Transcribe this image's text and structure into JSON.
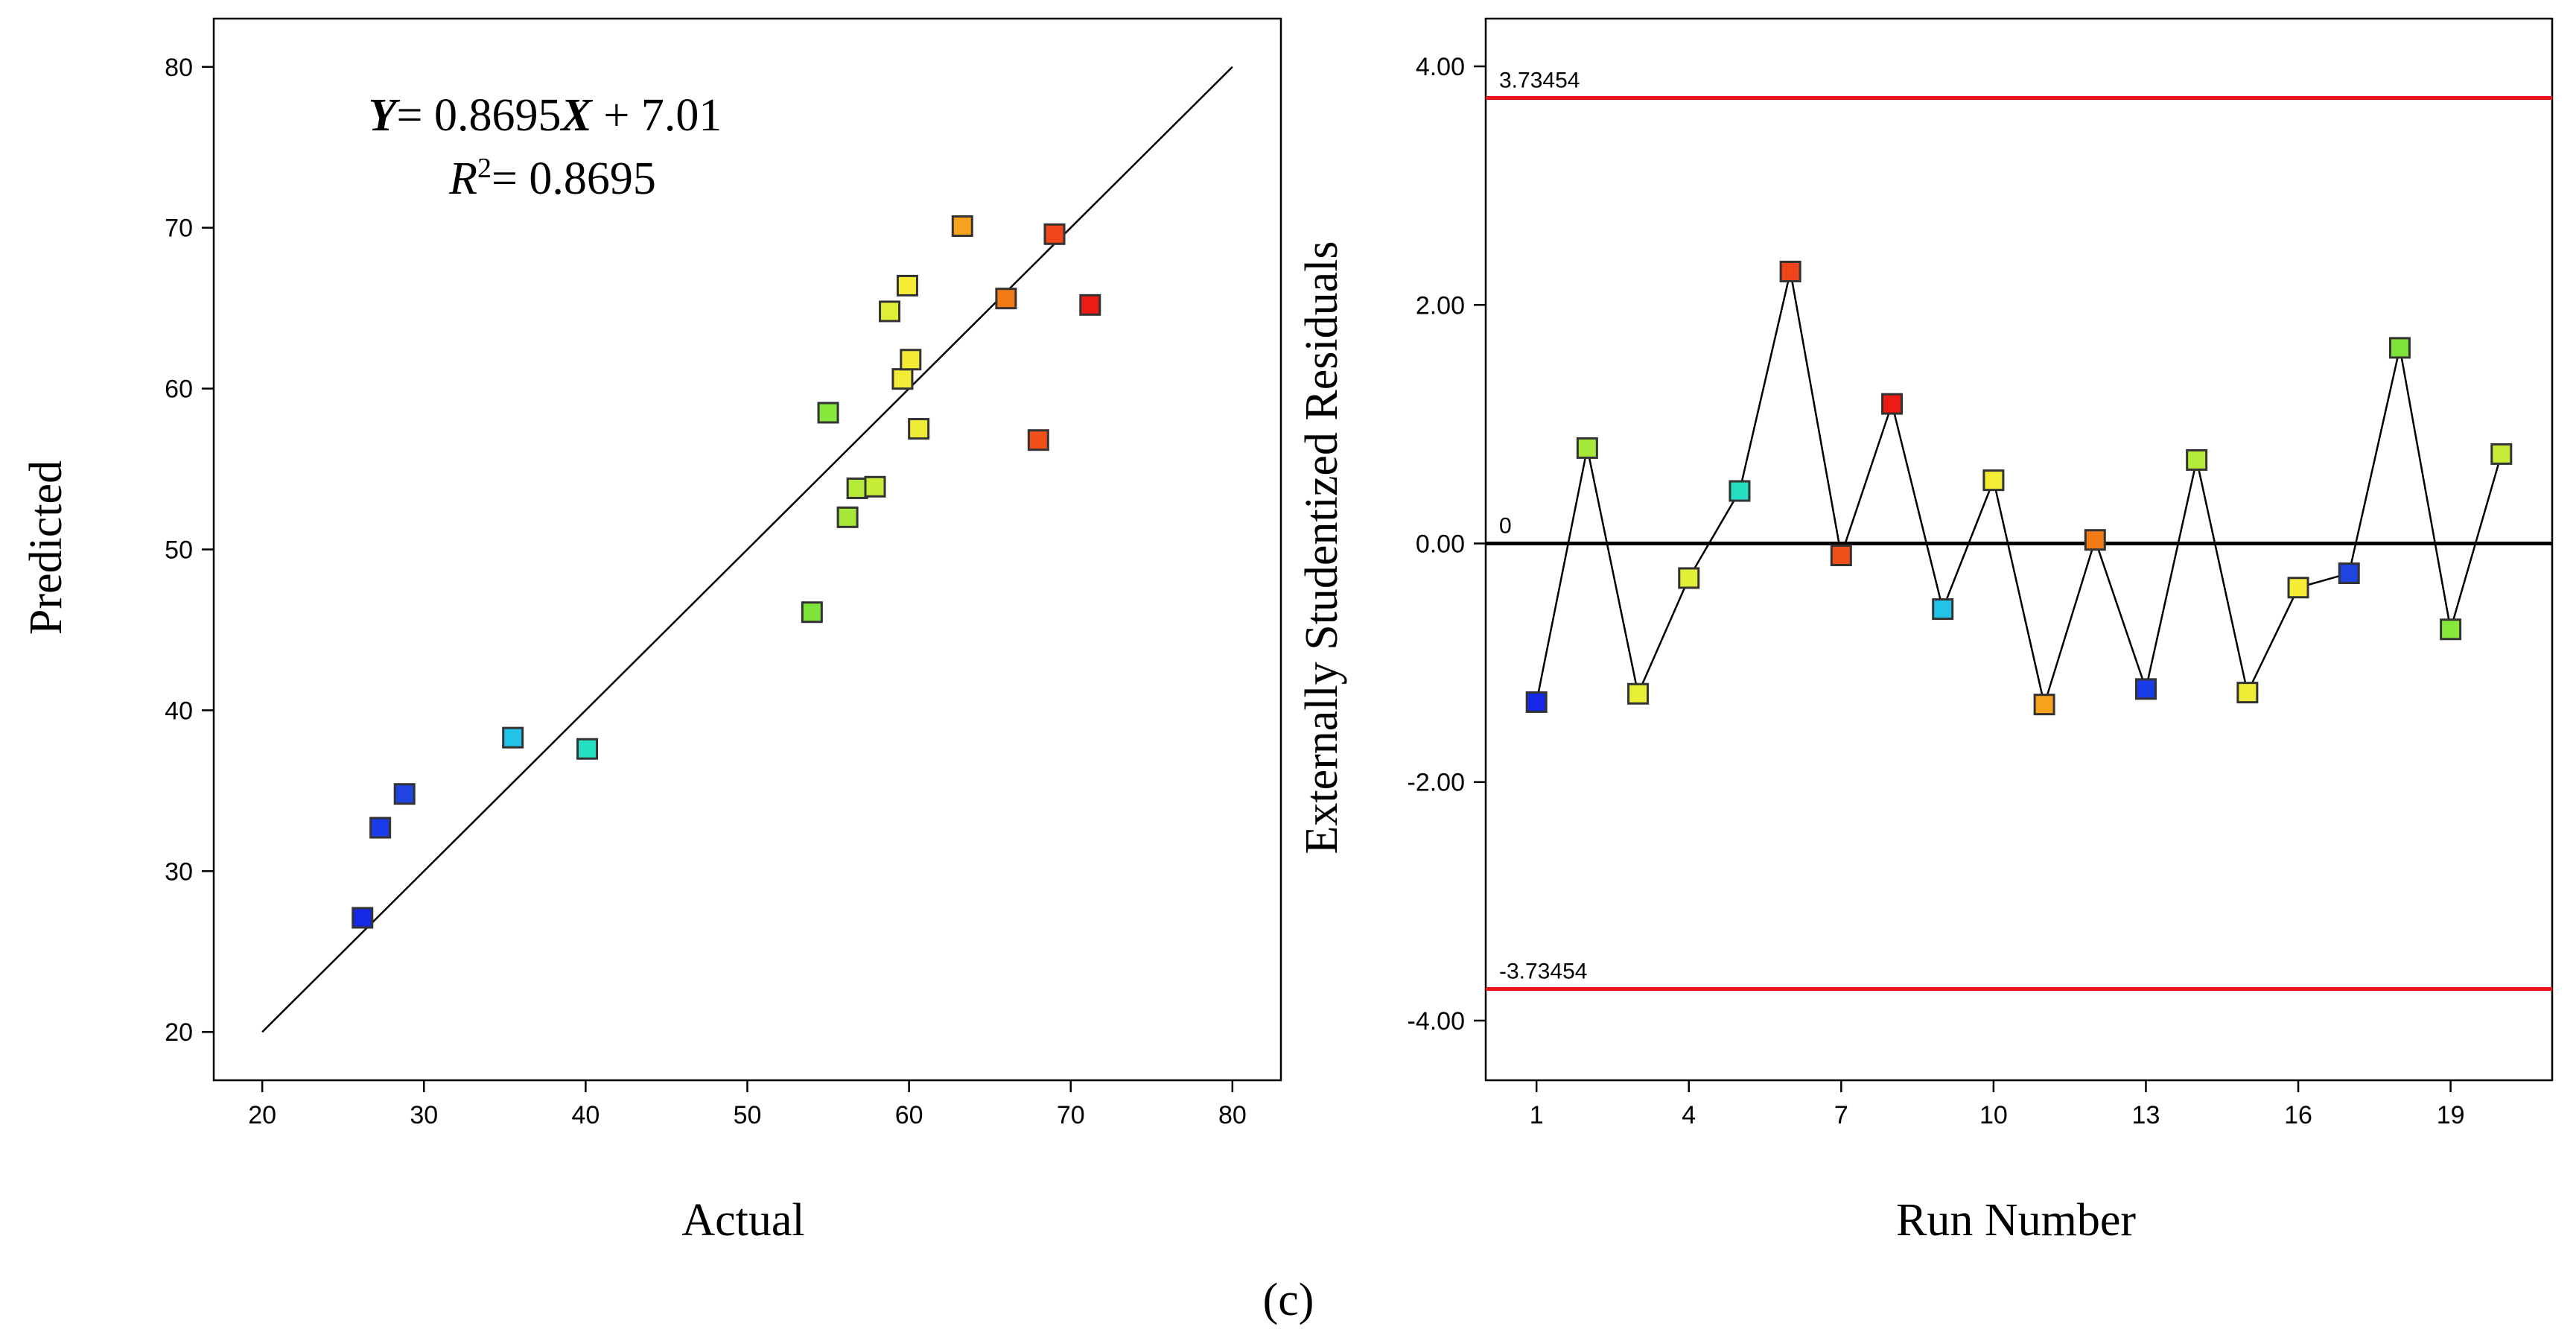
{
  "panel_label": "(c)",
  "chart_data": [
    {
      "type": "scatter",
      "xlabel": "Actual",
      "ylabel": "Predicted",
      "xlim": [
        17,
        83
      ],
      "ylim": [
        17,
        83
      ],
      "xticks": [
        20,
        30,
        40,
        50,
        60,
        70,
        80
      ],
      "yticks": [
        20,
        30,
        40,
        50,
        60,
        70,
        80
      ],
      "equation": {
        "y_var": "Y",
        "eq_text": "= 0.8695",
        "x_var": "X",
        "intercept_text": " + 7.01"
      },
      "r2": {
        "r_var": "R",
        "sup": "2",
        "eq_text": "= 0.8695"
      },
      "fit_line": {
        "x": [
          20,
          80
        ],
        "y": [
          20,
          80
        ],
        "color": "#000000"
      },
      "points": [
        {
          "x": 26.2,
          "y": 27.1,
          "color": "#1428e6"
        },
        {
          "x": 27.3,
          "y": 32.7,
          "color": "#1a3be8"
        },
        {
          "x": 28.8,
          "y": 34.8,
          "color": "#1f45e0"
        },
        {
          "x": 35.5,
          "y": 38.3,
          "color": "#22c3e8"
        },
        {
          "x": 40.1,
          "y": 37.6,
          "color": "#24e0c0"
        },
        {
          "x": 54.0,
          "y": 46.1,
          "color": "#7ee43a"
        },
        {
          "x": 55.0,
          "y": 58.5,
          "color": "#86e83a"
        },
        {
          "x": 56.2,
          "y": 52.0,
          "color": "#a6e83a"
        },
        {
          "x": 56.8,
          "y": 53.8,
          "color": "#b6ea38"
        },
        {
          "x": 57.9,
          "y": 53.9,
          "color": "#c6ec38"
        },
        {
          "x": 58.8,
          "y": 64.8,
          "color": "#e2ee36"
        },
        {
          "x": 59.6,
          "y": 60.6,
          "color": "#f2ec34"
        },
        {
          "x": 59.9,
          "y": 66.4,
          "color": "#f6ec34"
        },
        {
          "x": 60.1,
          "y": 61.8,
          "color": "#f4ea34"
        },
        {
          "x": 60.6,
          "y": 57.5,
          "color": "#eeec36"
        },
        {
          "x": 63.3,
          "y": 70.1,
          "color": "#f7a21c"
        },
        {
          "x": 66.0,
          "y": 65.6,
          "color": "#f27a14"
        },
        {
          "x": 68.0,
          "y": 56.8,
          "color": "#f2501a"
        },
        {
          "x": 69.0,
          "y": 69.6,
          "color": "#f0441a"
        },
        {
          "x": 71.2,
          "y": 65.2,
          "color": "#ee1a14"
        }
      ]
    },
    {
      "type": "line",
      "xlabel": "Run Number",
      "ylabel": "Externally Studentized Residuals",
      "xlim": [
        0,
        21
      ],
      "ylim": [
        -4.5,
        4.4
      ],
      "xticks": [
        1,
        4,
        7,
        10,
        13,
        16,
        19
      ],
      "yticks": [
        -4,
        -2,
        0,
        2,
        4
      ],
      "ytick_labels": [
        "-4.00",
        "-2.00",
        "0.00",
        "2.00",
        "4.00"
      ],
      "reference_lines": [
        {
          "y": 3.73454,
          "label": "3.73454",
          "color": "#e8141a"
        },
        {
          "y": 0,
          "label": "0",
          "color": "#000000"
        },
        {
          "y": -3.73454,
          "label": "-3.73454",
          "color": "#e8141a"
        }
      ],
      "series": [
        {
          "x": [
            1,
            2,
            3,
            4,
            5,
            6,
            7,
            8,
            9,
            10,
            11,
            12,
            13,
            14,
            15,
            16,
            17,
            18,
            19,
            20
          ],
          "values": [
            -1.33,
            0.8,
            -1.26,
            -0.29,
            0.44,
            2.28,
            -0.1,
            1.17,
            -0.55,
            0.53,
            -1.35,
            0.03,
            -1.22,
            0.7,
            -1.25,
            -0.37,
            -0.25,
            1.64,
            -0.72,
            0.75
          ],
          "colors": [
            "#1428e6",
            "#a6e83a",
            "#e6ee36",
            "#e0ee36",
            "#24e0c0",
            "#f0441a",
            "#f2501a",
            "#ee1a14",
            "#22c3e8",
            "#f4ec34",
            "#f7a21c",
            "#f27a14",
            "#1a3be8",
            "#b6ea38",
            "#eeec36",
            "#f6ec34",
            "#1f45e0",
            "#7ee43a",
            "#86e83a",
            "#c6ec38"
          ]
        }
      ]
    }
  ]
}
